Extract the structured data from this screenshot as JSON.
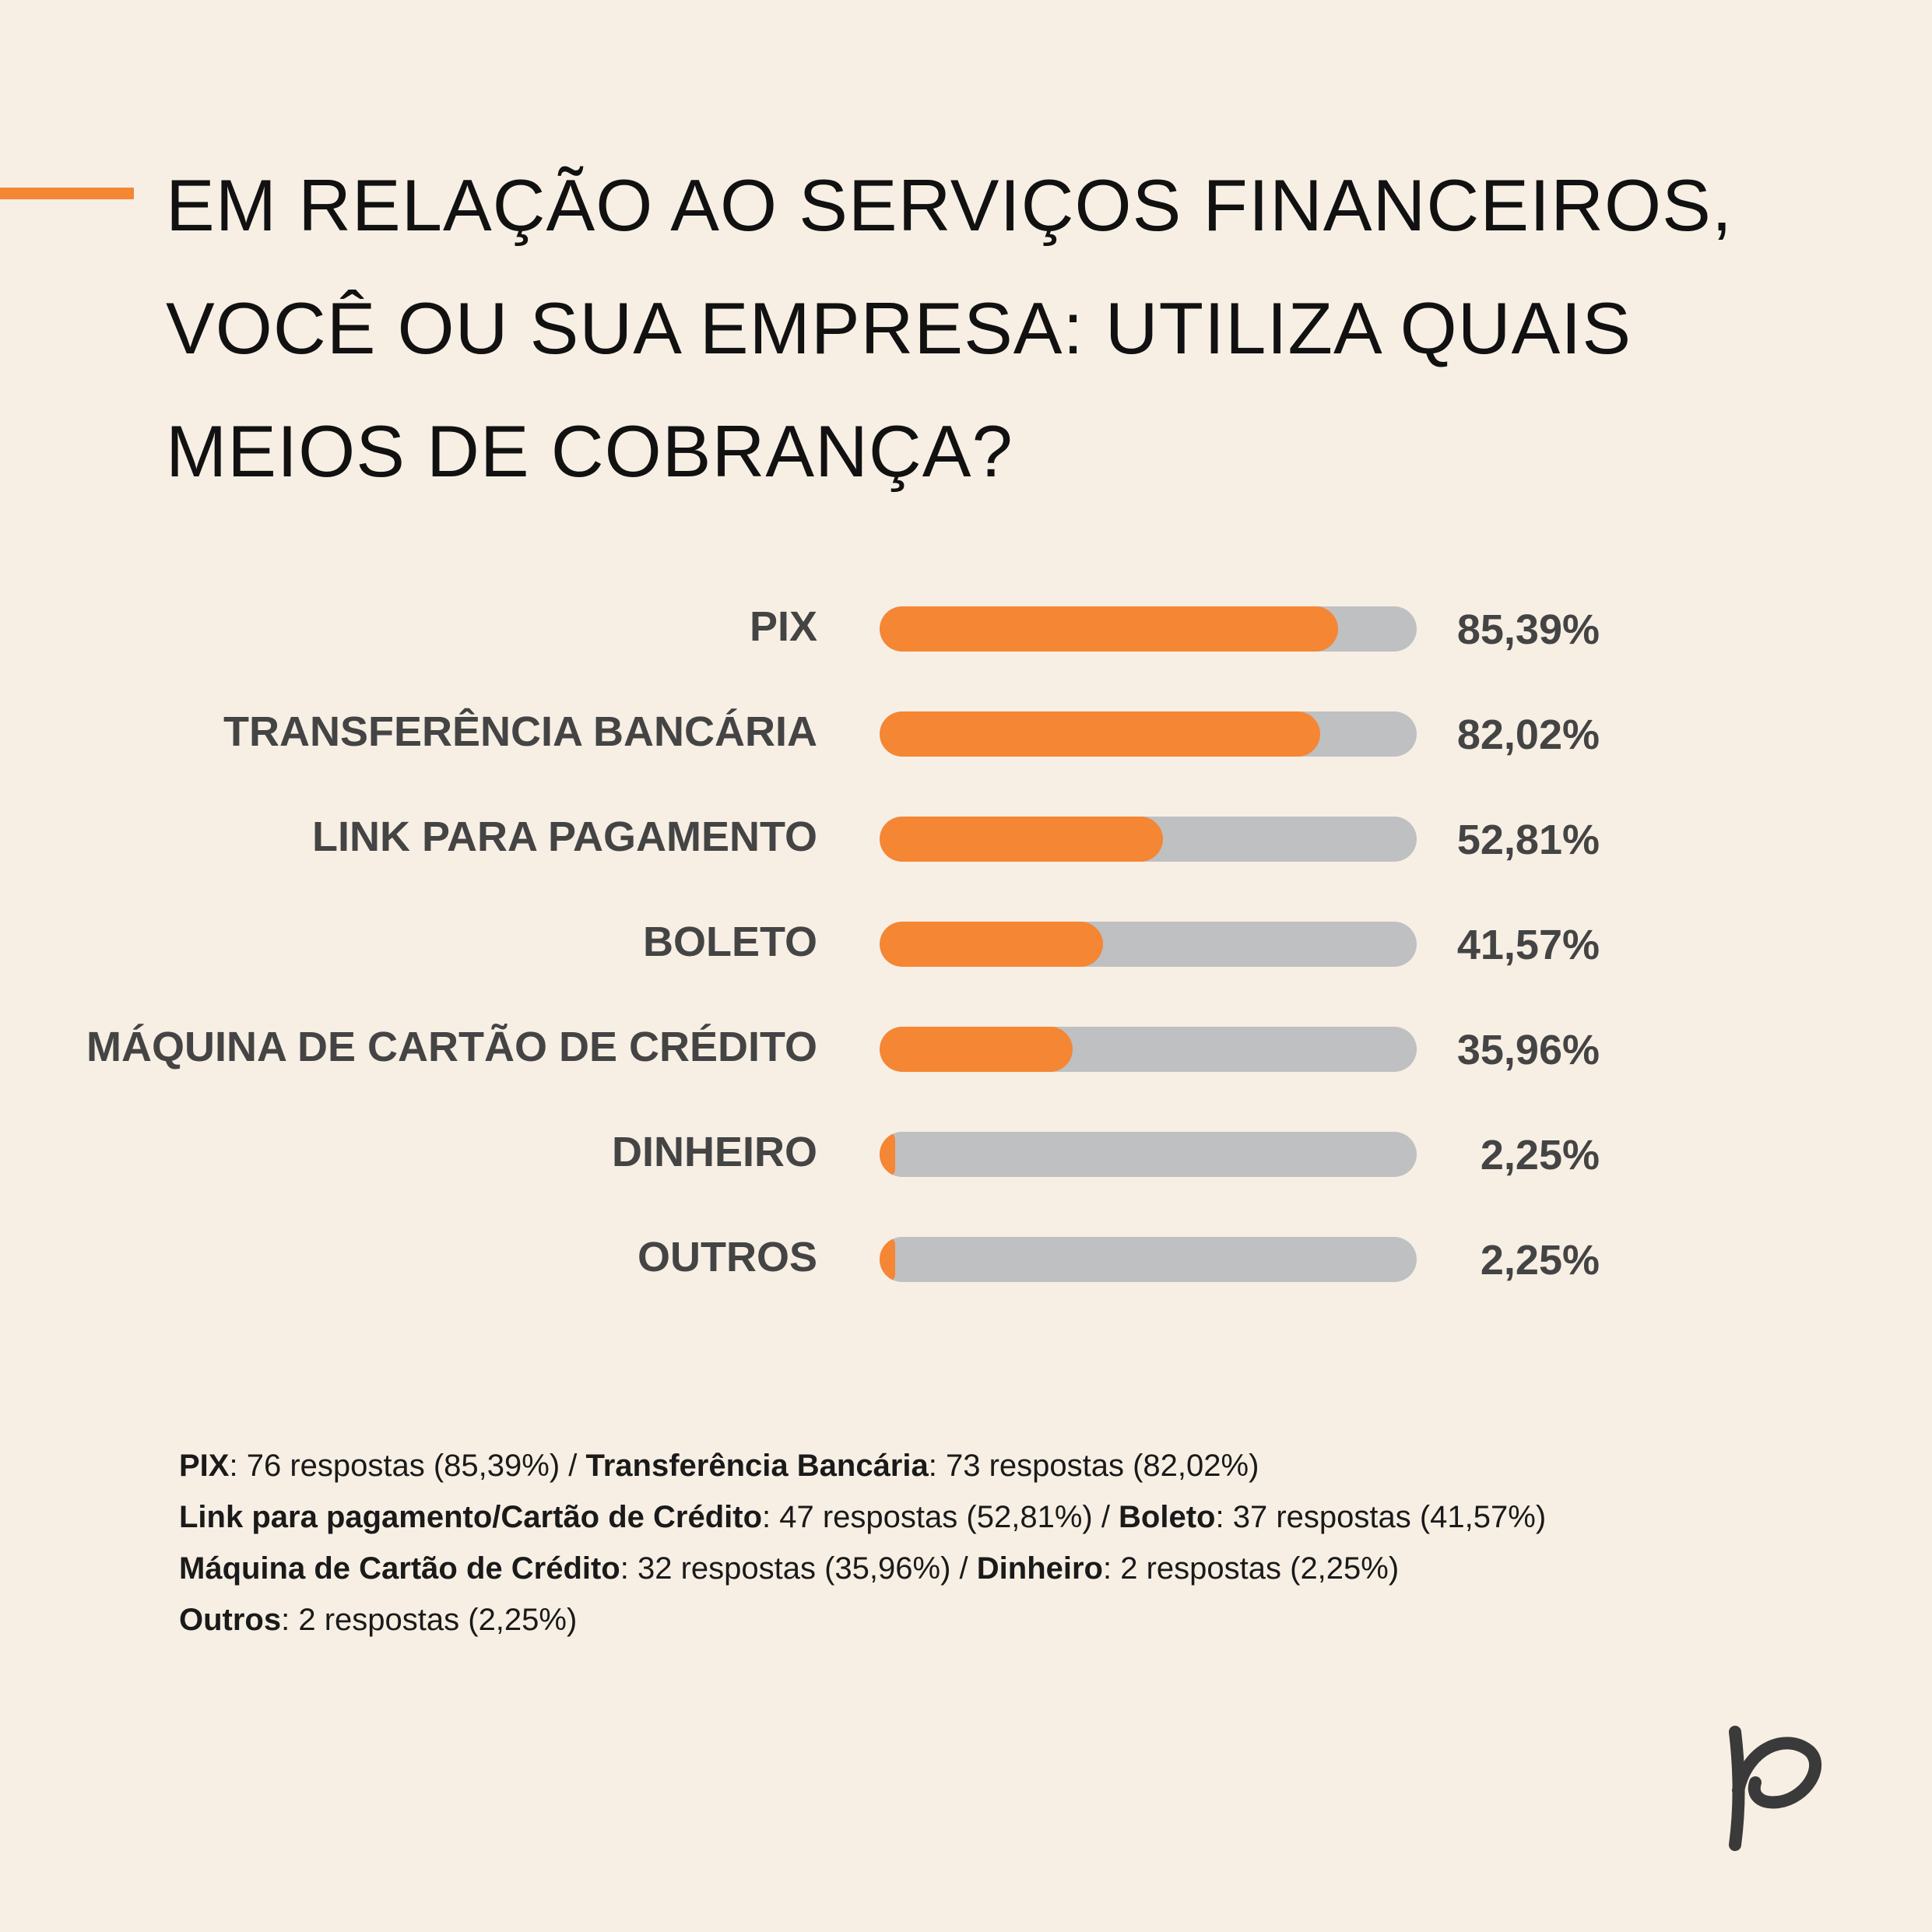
{
  "title": {
    "lines": [
      "EM RELAÇÃO AO SERVIÇOS FINANCEIROS,",
      "VOCÊ OU SUA EMPRESA: UTILIZA QUAIS",
      "MEIOS DE COBRANÇA?"
    ]
  },
  "colors": {
    "accent": "#f58634",
    "track": "#bfc0c2",
    "background": "#f7efe4",
    "label": "#444444"
  },
  "chart_data": {
    "type": "bar",
    "orientation": "horizontal",
    "categories": [
      "PIX",
      "TRANSFERÊNCIA BANCÁRIA",
      "LINK PARA PAGAMENTO",
      "BOLETO",
      "MÁQUINA DE CARTÃO DE CRÉDITO",
      "DINHEIRO",
      "OUTROS"
    ],
    "values": [
      85.39,
      82.02,
      52.81,
      41.57,
      35.96,
      2.25,
      2.25
    ],
    "value_labels": [
      "85,39%",
      "82,02%",
      "52,81%",
      "41,57%",
      "35,96%",
      "2,25%",
      "2,25%"
    ],
    "xlim": [
      0,
      100
    ],
    "grid": false
  },
  "notes": [
    [
      {
        "bold": true,
        "text": "PIX"
      },
      {
        "bold": false,
        "text": ": 76 respostas (85,39%) / "
      },
      {
        "bold": true,
        "text": "Transferência Bancária"
      },
      {
        "bold": false,
        "text": ": 73 respostas (82,02%)"
      }
    ],
    [
      {
        "bold": true,
        "text": "Link para pagamento/Cartão de Crédito"
      },
      {
        "bold": false,
        "text": ": 47 respostas (52,81%) / "
      },
      {
        "bold": true,
        "text": "Boleto"
      },
      {
        "bold": false,
        "text": ": 37 respostas (41,57%)"
      }
    ],
    [
      {
        "bold": true,
        "text": "Máquina de Cartão de Crédito"
      },
      {
        "bold": false,
        "text": ": 32 respostas (35,96%) / "
      },
      {
        "bold": true,
        "text": "Dinheiro"
      },
      {
        "bold": false,
        "text": ": 2 respostas (2,25%)"
      }
    ],
    [
      {
        "bold": true,
        "text": "Outros"
      },
      {
        "bold": false,
        "text": ": 2 respostas (2,25%)"
      }
    ]
  ],
  "logo": {
    "icon": "p-logo-icon"
  }
}
